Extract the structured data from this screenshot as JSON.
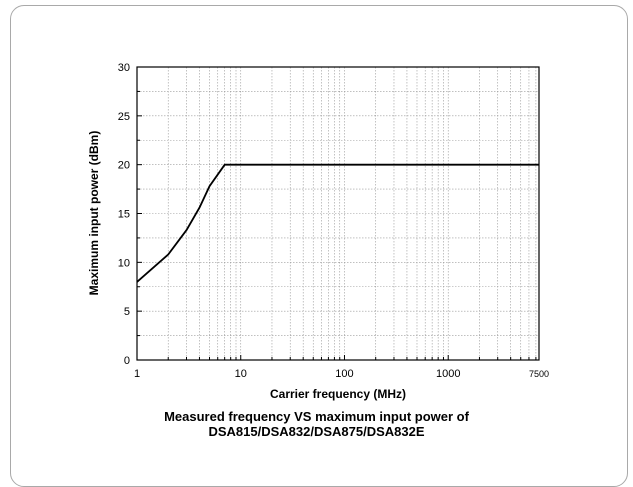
{
  "chart_data": {
    "type": "line",
    "xscale": "log",
    "xlim": [
      1,
      7500
    ],
    "ylim": [
      0,
      30
    ],
    "xlabel": "Carrier frequency (MHz)",
    "ylabel": "Maximum input power (dBm)",
    "xticks": [
      "1",
      "10",
      "100",
      "1000",
      "7500"
    ],
    "yticks": [
      "0",
      "5",
      "10",
      "15",
      "20",
      "25",
      "30"
    ],
    "grid": true,
    "series": [
      {
        "x": [
          1,
          2,
          3,
          4,
          5,
          7,
          7500
        ],
        "y": [
          8.0,
          10.8,
          13.3,
          15.6,
          17.8,
          20,
          20
        ]
      }
    ]
  },
  "caption_line1": "Measured frequency VS maximum input power of",
  "caption_line2": "DSA815/DSA832/DSA875/DSA832E"
}
